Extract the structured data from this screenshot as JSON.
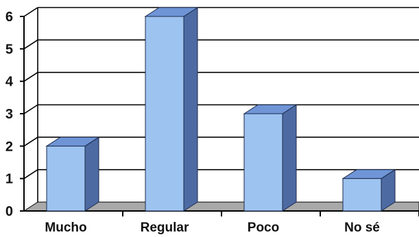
{
  "chart_data": {
    "type": "bar",
    "categories": [
      "Mucho",
      "Regular",
      "Poco",
      "No sé"
    ],
    "values": [
      2,
      6,
      3,
      1
    ],
    "title": "",
    "xlabel": "",
    "ylabel": "",
    "ylim": [
      0,
      6
    ],
    "yticks": [
      "0",
      "1",
      "2",
      "3",
      "4",
      "5",
      "6"
    ],
    "grid": true,
    "style": "3d",
    "colors": {
      "bar_front": "#9dc3f0",
      "bar_top": "#6f95d6",
      "bar_side": "#4d6aa3",
      "floor": "#a9a9a9",
      "axis": "#000000",
      "grid": "#000000"
    }
  }
}
